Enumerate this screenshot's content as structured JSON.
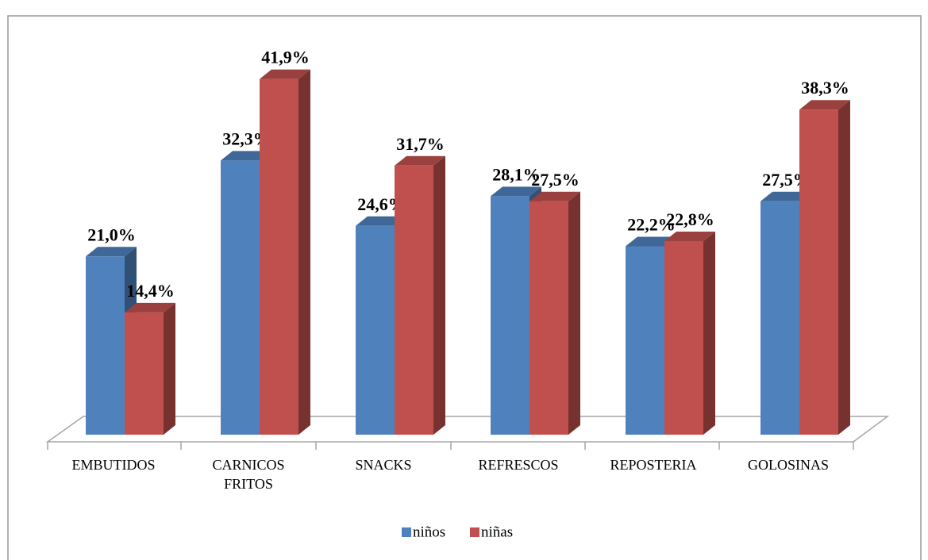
{
  "chart_data": {
    "type": "bar3d",
    "categories": [
      "EMBUTIDOS",
      "CARNICOS FRITOS",
      "SNACKS",
      "REFRESCOS",
      "REPOSTERIA",
      "GOLOSINAS"
    ],
    "series": [
      {
        "name": "niños",
        "color": "#4f81bd",
        "values": [
          21.0,
          32.3,
          24.6,
          28.1,
          22.2,
          27.5
        ],
        "value_labels": [
          "21,0%",
          "32,3%",
          "24,6%",
          "28,1%",
          "22,2%",
          "27,5%"
        ]
      },
      {
        "name": "niñas",
        "color": "#c0504d",
        "values": [
          14.4,
          41.9,
          31.7,
          27.5,
          22.8,
          38.3
        ],
        "value_labels": [
          "14,4%",
          "41,9%",
          "31,7%",
          "27,5%",
          "22,8%",
          "38,3%"
        ]
      }
    ],
    "legend": "bottom"
  }
}
